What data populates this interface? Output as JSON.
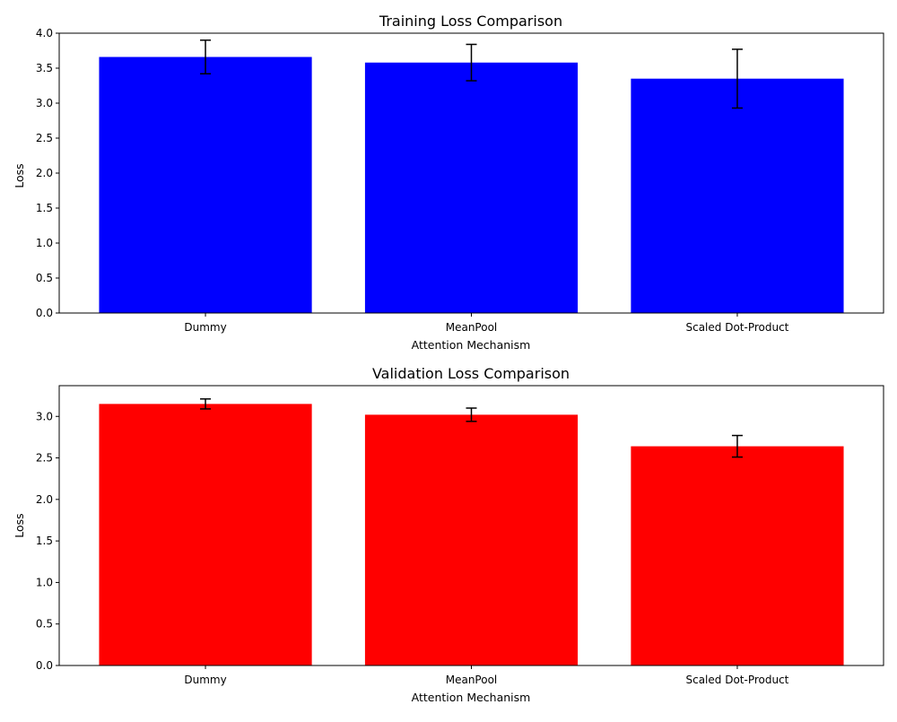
{
  "chart_data": [
    {
      "type": "bar",
      "title": "Training Loss Comparison",
      "xlabel": "Attention Mechanism",
      "ylabel": "Loss",
      "categories": [
        "Dummy",
        "MeanPool",
        "Scaled Dot-Product"
      ],
      "values": [
        3.66,
        3.58,
        3.35
      ],
      "errors": [
        0.24,
        0.26,
        0.42
      ],
      "color": "#0000ff",
      "ylim": [
        0,
        4.0
      ],
      "yticks": [
        0.0,
        0.5,
        1.0,
        1.5,
        2.0,
        2.5,
        3.0,
        3.5,
        4.0
      ],
      "ytick_labels": [
        "0.0",
        "0.5",
        "1.0",
        "1.5",
        "2.0",
        "2.5",
        "3.0",
        "3.5",
        "4.0"
      ],
      "grid": false,
      "legend": "none"
    },
    {
      "type": "bar",
      "title": "Validation Loss Comparison",
      "xlabel": "Attention Mechanism",
      "ylabel": "Loss",
      "categories": [
        "Dummy",
        "MeanPool",
        "Scaled Dot-Product"
      ],
      "values": [
        3.15,
        3.02,
        2.64
      ],
      "errors": [
        0.06,
        0.08,
        0.13
      ],
      "color": "#ff0000",
      "ylim": [
        0,
        3.37
      ],
      "yticks": [
        0.0,
        0.5,
        1.0,
        1.5,
        2.0,
        2.5,
        3.0
      ],
      "ytick_labels": [
        "0.0",
        "0.5",
        "1.0",
        "1.5",
        "2.0",
        "2.5",
        "3.0"
      ],
      "grid": false,
      "legend": "none"
    }
  ]
}
